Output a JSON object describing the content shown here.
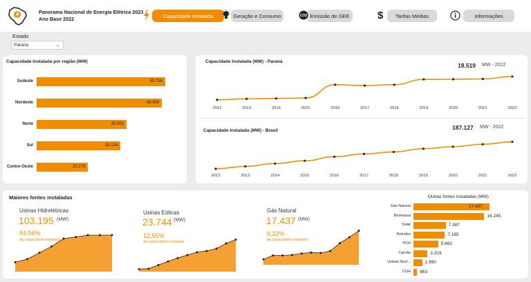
{
  "header": {
    "title_line1": "Panorama Nacional de Energia Elétrica 2023",
    "title_line2": "Ano Base 2022",
    "tabs": [
      {
        "label": "Capacidade Instalada",
        "icon": "lightning-icon"
      },
      {
        "label": "Geração e Consumo",
        "icon": "lightbulb-icon"
      },
      {
        "label": "Emissão de GEE",
        "icon": "co2-icon"
      },
      {
        "label": "Tarifas Médias",
        "icon": "dollar-icon"
      },
      {
        "label": "Informações",
        "icon": "info-icon"
      }
    ]
  },
  "filter": {
    "label": "Estado",
    "value": "Paraná"
  },
  "colors": {
    "accent": "#f08c00",
    "tab_inactive": "#d9d9d9"
  },
  "regions": {
    "title": "Capacidade Instalada por região (MW)",
    "chart_data": {
      "type": "bar",
      "categories": [
        "Sudeste",
        "Nordeste",
        "Norte",
        "Sul",
        "Centro-Oeste"
      ],
      "values": [
        50755,
        49458,
        35502,
        33134,
        20279
      ],
      "labels": [
        "50.755",
        "49.458",
        "35.502",
        "33.134",
        "20.279"
      ]
    }
  },
  "parana_chart": {
    "title": "Capacidade Instalada (MW) - Paraná",
    "total": "18.519",
    "unit": "MW - 2022",
    "chart_data": {
      "type": "line",
      "x": [
        "2012",
        "2013",
        "2014",
        "2015",
        "2016",
        "2017",
        "2018",
        "2019",
        "2020",
        "2021",
        "2022"
      ],
      "values": [
        15900,
        16000,
        16050,
        16100,
        17600,
        17500,
        17600,
        18200,
        18220,
        18250,
        18519
      ]
    }
  },
  "brasil_chart": {
    "title": "Capacidade Instalada (MW) - Brasil",
    "total": "187.127",
    "unit": "MW - 2022",
    "chart_data": {
      "type": "line",
      "x": [
        "2012",
        "2013",
        "2014",
        "2015",
        "2016",
        "2017",
        "2018",
        "2019",
        "2020",
        "2021",
        "2022"
      ],
      "values": [
        120000,
        126000,
        133000,
        140000,
        150000,
        157000,
        162000,
        170000,
        175000,
        181000,
        187127
      ]
    }
  },
  "main_sources": {
    "title": "Maiores fontes instaladas",
    "items": [
      {
        "name": "Usinas Hidrelétricas",
        "value": "103.195",
        "unit": "(MW)",
        "pct": "54,56%",
        "pct_caption": "da capacidade instalada",
        "chart_data": {
          "type": "area",
          "values": [
            86000,
            88000,
            92000,
            96000,
            101000,
            102000,
            103195,
            103195,
            103195
          ]
        }
      },
      {
        "name": "Usinas Eólicas",
        "value": "23.744",
        "unit": "(MW)",
        "pct": "12,55%",
        "pct_caption": "da capacidade instalada",
        "chart_data": {
          "type": "area",
          "values": [
            1900,
            2200,
            4900,
            7600,
            10100,
            12300,
            14400,
            15400,
            17100,
            20900,
            23744
          ]
        }
      },
      {
        "name": "Gás Natural",
        "value": "17.437",
        "unit": "(MW)",
        "pct": "9,22%",
        "pct_caption": "da capacidade instalada",
        "chart_data": {
          "type": "area",
          "values": [
            11600,
            12400,
            12400,
            12500,
            12800,
            13000,
            12900,
            13300,
            14900,
            16100,
            17437
          ]
        }
      }
    ]
  },
  "other_sources": {
    "title": "Outras fontes instaladas (MW)",
    "chart_data": {
      "type": "bar",
      "categories": [
        "Gás Natural",
        "Biomassa",
        "Solar",
        "Petróleo",
        "PCH",
        "Carvão",
        "Usinas Nucl...",
        "CGH"
      ],
      "values": [
        17437,
        16245,
        7387,
        7185,
        5662,
        3203,
        1990,
        863
      ],
      "labels": [
        "17.437",
        "16.245",
        "7.387",
        "7.185",
        "5.662",
        "3.203",
        "1.990",
        "863"
      ]
    }
  }
}
